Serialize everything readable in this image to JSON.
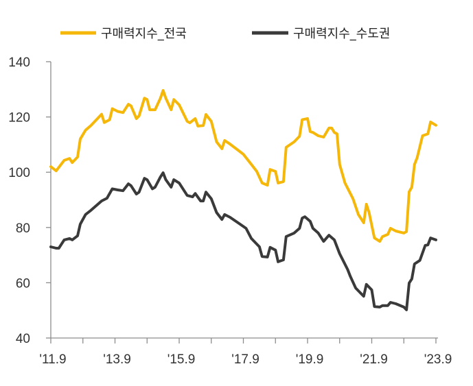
{
  "chart_data": {
    "type": "line",
    "title": "",
    "xlabel": "",
    "ylabel": "",
    "x_unit": "months since 2011.9",
    "xlim": [
      0,
      144
    ],
    "ylim": [
      40,
      140
    ],
    "yticks": [
      40,
      60,
      80,
      100,
      120,
      140
    ],
    "xticks": [
      {
        "x": 0,
        "label": "'11.9"
      },
      {
        "x": 24,
        "label": "'13.9"
      },
      {
        "x": 48,
        "label": "'15.9"
      },
      {
        "x": 72,
        "label": "'17.9"
      },
      {
        "x": 96,
        "label": "'19.9"
      },
      {
        "x": 120,
        "label": "'21.9"
      },
      {
        "x": 144,
        "label": "'23.9"
      }
    ],
    "grid": false,
    "legend_position": "top",
    "series": [
      {
        "name": "구매력지수_전국",
        "color": "#F5B80A",
        "points": [
          [
            0,
            102
          ],
          [
            2,
            100.5
          ],
          [
            5,
            104.3
          ],
          [
            7,
            105
          ],
          [
            8,
            103.5
          ],
          [
            10,
            105.5
          ],
          [
            11,
            112
          ],
          [
            13,
            115.2
          ],
          [
            15,
            116.9
          ],
          [
            19,
            121
          ],
          [
            20,
            118
          ],
          [
            22,
            119
          ],
          [
            23,
            123
          ],
          [
            25,
            122
          ],
          [
            27,
            121.6
          ],
          [
            29,
            124.6
          ],
          [
            30,
            124
          ],
          [
            32,
            119.4
          ],
          [
            33,
            120.4
          ],
          [
            35,
            126.8
          ],
          [
            36,
            126.3
          ],
          [
            37,
            122.6
          ],
          [
            39,
            122.6
          ],
          [
            41,
            126.8
          ],
          [
            42,
            129.6
          ],
          [
            43,
            126.8
          ],
          [
            45,
            122.6
          ],
          [
            46,
            126.3
          ],
          [
            48,
            124.4
          ],
          [
            51,
            118.4
          ],
          [
            52,
            117.9
          ],
          [
            54,
            119.4
          ],
          [
            55,
            116.7
          ],
          [
            57,
            116.9
          ],
          [
            58,
            120.9
          ],
          [
            60,
            118.4
          ],
          [
            62,
            111
          ],
          [
            64,
            108.5
          ],
          [
            65,
            111.5
          ],
          [
            67,
            110.2
          ],
          [
            70,
            108
          ],
          [
            72,
            106.5
          ],
          [
            75,
            102.8
          ],
          [
            77,
            100.3
          ],
          [
            79,
            96.1
          ],
          [
            81,
            95.3
          ],
          [
            82,
            101
          ],
          [
            84,
            100.3
          ],
          [
            85,
            96.1
          ],
          [
            87,
            96.6
          ],
          [
            88,
            109
          ],
          [
            91,
            111
          ],
          [
            93,
            113
          ],
          [
            94,
            119
          ],
          [
            96,
            119.4
          ],
          [
            97,
            114.7
          ],
          [
            98,
            114.4
          ],
          [
            100,
            113.2
          ],
          [
            102,
            112.7
          ],
          [
            104,
            116
          ],
          [
            105,
            116
          ],
          [
            106,
            114.4
          ],
          [
            107,
            113.9
          ],
          [
            108,
            102.8
          ],
          [
            110,
            96.1
          ],
          [
            113,
            90.4
          ],
          [
            115,
            84.7
          ],
          [
            117,
            81.7
          ],
          [
            118,
            88.4
          ],
          [
            119,
            85.4
          ],
          [
            121,
            76.2
          ],
          [
            123,
            75
          ],
          [
            124,
            76.7
          ],
          [
            126,
            77.5
          ],
          [
            127,
            79.7
          ],
          [
            129,
            78.7
          ],
          [
            132,
            78
          ],
          [
            133,
            78.5
          ],
          [
            134,
            92.9
          ],
          [
            135,
            94.6
          ],
          [
            136,
            102.8
          ],
          [
            137,
            105.3
          ],
          [
            139,
            113.2
          ],
          [
            141,
            113.9
          ],
          [
            142,
            118.2
          ],
          [
            144,
            117
          ]
        ]
      },
      {
        "name": "구매력지수_수도권",
        "color": "#3A3A3A",
        "points": [
          [
            0,
            73
          ],
          [
            2,
            72.5
          ],
          [
            3,
            72.5
          ],
          [
            5,
            75.5
          ],
          [
            7,
            76
          ],
          [
            8,
            75.5
          ],
          [
            10,
            77
          ],
          [
            11,
            81.2
          ],
          [
            13,
            84.7
          ],
          [
            15,
            86.2
          ],
          [
            19,
            89.6
          ],
          [
            21,
            90.6
          ],
          [
            23,
            94
          ],
          [
            25,
            93.6
          ],
          [
            27,
            93.3
          ],
          [
            29,
            95.8
          ],
          [
            30,
            95.1
          ],
          [
            32,
            92.1
          ],
          [
            33,
            92.8
          ],
          [
            35,
            97.8
          ],
          [
            36,
            97.3
          ],
          [
            38,
            94
          ],
          [
            39,
            94.6
          ],
          [
            41,
            98.3
          ],
          [
            42,
            99.8
          ],
          [
            43,
            97.3
          ],
          [
            45,
            94.6
          ],
          [
            46,
            97.3
          ],
          [
            48,
            96.1
          ],
          [
            51,
            91.6
          ],
          [
            53,
            91.1
          ],
          [
            54,
            92.3
          ],
          [
            56,
            89.6
          ],
          [
            57,
            89.6
          ],
          [
            58,
            92.8
          ],
          [
            60,
            90.4
          ],
          [
            62,
            85.4
          ],
          [
            64,
            82.9
          ],
          [
            65,
            84.7
          ],
          [
            67,
            83.7
          ],
          [
            70,
            81.7
          ],
          [
            73,
            79.7
          ],
          [
            75,
            76
          ],
          [
            78,
            73
          ],
          [
            79,
            69.5
          ],
          [
            81,
            69.3
          ],
          [
            82,
            72.8
          ],
          [
            84,
            71.8
          ],
          [
            85,
            67.6
          ],
          [
            87,
            68.3
          ],
          [
            88,
            76.7
          ],
          [
            91,
            78
          ],
          [
            93,
            79.7
          ],
          [
            94,
            83.4
          ],
          [
            95,
            83.9
          ],
          [
            97,
            82.2
          ],
          [
            98,
            79.7
          ],
          [
            100,
            78
          ],
          [
            102,
            75
          ],
          [
            104,
            77.2
          ],
          [
            106,
            75.5
          ],
          [
            108,
            70.5
          ],
          [
            111,
            64.8
          ],
          [
            112,
            62.3
          ],
          [
            114,
            58.1
          ],
          [
            117,
            55.1
          ],
          [
            118,
            59.4
          ],
          [
            120,
            57.4
          ],
          [
            121,
            51.4
          ],
          [
            123,
            51.2
          ],
          [
            124,
            51.7
          ],
          [
            126,
            51.7
          ],
          [
            127,
            52.9
          ],
          [
            129,
            52.4
          ],
          [
            132,
            51.2
          ],
          [
            133,
            50.2
          ],
          [
            134,
            59.9
          ],
          [
            135,
            61.4
          ],
          [
            136,
            66.8
          ],
          [
            138,
            68.1
          ],
          [
            140,
            73.5
          ],
          [
            141,
            73.7
          ],
          [
            142,
            76.2
          ],
          [
            144,
            75.5
          ]
        ]
      }
    ]
  }
}
